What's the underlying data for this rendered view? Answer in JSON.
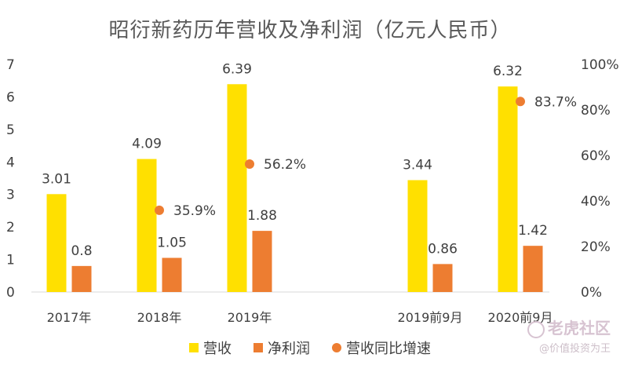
{
  "chart_data": {
    "type": "bar",
    "title": "昭衍新药历年营收及净利润（亿元人民币）",
    "categories": [
      "2017年",
      "2018年",
      "2019年",
      "2019前9月",
      "2020前9月"
    ],
    "y_left": {
      "ylim": [
        0,
        7
      ],
      "ticks": [
        "0",
        "1",
        "2",
        "3",
        "4",
        "5",
        "6",
        "7"
      ]
    },
    "y_right": {
      "ylim": [
        0,
        100
      ],
      "ticks": [
        "0%",
        "20%",
        "40%",
        "60%",
        "80%",
        "100%"
      ]
    },
    "series": [
      {
        "name": "营收",
        "kind": "bar",
        "axis": "left",
        "color": "#FFE000",
        "values": [
          3.01,
          4.09,
          6.39,
          3.44,
          6.32
        ],
        "labels": [
          "3.01",
          "4.09",
          "6.39",
          "3.44",
          "6.32"
        ]
      },
      {
        "name": "净利润",
        "kind": "bar",
        "axis": "left",
        "color": "#ED7D31",
        "values": [
          0.8,
          1.05,
          1.88,
          0.86,
          1.42
        ],
        "labels": [
          "0.8",
          "1.05",
          "1.88",
          "0.86",
          "1.42"
        ]
      },
      {
        "name": "营收同比增速",
        "kind": "scatter",
        "axis": "right",
        "color": "#ED7D31",
        "values": [
          null,
          35.9,
          56.2,
          null,
          83.7
        ],
        "labels": [
          "",
          "35.9%",
          "56.2%",
          "",
          "83.7%"
        ]
      }
    ],
    "legend_position": "bottom",
    "grid": false
  },
  "legend": {
    "revenue": "营收",
    "net_profit": "净利润",
    "growth": "营收同比增速"
  },
  "watermark": {
    "line1": "老虎社区",
    "line2": "@价值投资为王"
  }
}
